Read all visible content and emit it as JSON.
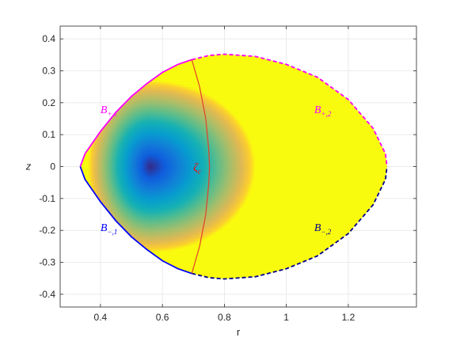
{
  "chart_data": {
    "type": "heatmap",
    "title": "",
    "xlabel": "r",
    "ylabel": "z",
    "xlim": [
      0.27,
      1.42
    ],
    "ylim": [
      -0.44,
      0.44
    ],
    "grid": true,
    "x_ticks": [
      0.4,
      0.6,
      0.8,
      1.0,
      1.2
    ],
    "x_tick_labels": [
      "0.4",
      "0.6",
      "0.8",
      "1",
      "1.2"
    ],
    "y_ticks": [
      0.4,
      0.3,
      0.2,
      0.1,
      0,
      -0.1,
      -0.2,
      -0.3,
      -0.4
    ],
    "y_tick_labels": [
      "0.4",
      "0.3",
      "0.2",
      "0.1",
      "0",
      "-0.1",
      "-0.2",
      "-0.3",
      "-0.4"
    ],
    "colormap": "parula",
    "minimum": {
      "r": 0.56,
      "z": 0.0
    },
    "boundary": {
      "upper_left": {
        "label_main": "B",
        "label_sub": "+,1",
        "color": "#ff00ff",
        "style": "solid",
        "points": [
          [
            0.335,
            0.0
          ],
          [
            0.35,
            0.04
          ],
          [
            0.4,
            0.11
          ],
          [
            0.45,
            0.17
          ],
          [
            0.5,
            0.22
          ],
          [
            0.55,
            0.26
          ],
          [
            0.6,
            0.295
          ],
          [
            0.65,
            0.32
          ],
          [
            0.695,
            0.335
          ]
        ]
      },
      "upper_right": {
        "label_main": "B",
        "label_sub": "+,2",
        "color": "#ff00ff",
        "style": "dashed",
        "points": [
          [
            0.695,
            0.335
          ],
          [
            0.75,
            0.348
          ],
          [
            0.8,
            0.352
          ],
          [
            0.9,
            0.345
          ],
          [
            1.0,
            0.32
          ],
          [
            1.1,
            0.28
          ],
          [
            1.2,
            0.21
          ],
          [
            1.28,
            0.12
          ],
          [
            1.32,
            0.04
          ],
          [
            1.325,
            0.0
          ]
        ]
      },
      "lower_left": {
        "label_main": "B",
        "label_sub": "−,1",
        "color": "#0000ff",
        "style": "solid",
        "points": [
          [
            0.335,
            0.0
          ],
          [
            0.35,
            -0.04
          ],
          [
            0.4,
            -0.11
          ],
          [
            0.45,
            -0.17
          ],
          [
            0.5,
            -0.22
          ],
          [
            0.55,
            -0.26
          ],
          [
            0.6,
            -0.295
          ],
          [
            0.65,
            -0.32
          ],
          [
            0.695,
            -0.335
          ]
        ]
      },
      "lower_right": {
        "label_main": "B",
        "label_sub": "−,2",
        "color": "#00008b",
        "style": "dashed",
        "points": [
          [
            0.695,
            -0.335
          ],
          [
            0.75,
            -0.348
          ],
          [
            0.8,
            -0.352
          ],
          [
            0.9,
            -0.345
          ],
          [
            1.0,
            -0.32
          ],
          [
            1.1,
            -0.28
          ],
          [
            1.2,
            -0.21
          ],
          [
            1.28,
            -0.12
          ],
          [
            1.32,
            -0.04
          ],
          [
            1.325,
            0.0
          ]
        ]
      }
    },
    "interface_curve": {
      "label_main": "ζ",
      "label_sub": "c",
      "color": "#e2402a",
      "points": [
        [
          0.695,
          0.335
        ],
        [
          0.72,
          0.25
        ],
        [
          0.74,
          0.15
        ],
        [
          0.75,
          0.05
        ],
        [
          0.752,
          0.0
        ],
        [
          0.75,
          -0.05
        ],
        [
          0.74,
          -0.15
        ],
        [
          0.72,
          -0.25
        ],
        [
          0.695,
          -0.335
        ]
      ]
    },
    "annotations": [
      {
        "text_main": "B",
        "text_sub": "+,1",
        "r": 0.4,
        "z": 0.18,
        "color": "#ff00ff"
      },
      {
        "text_main": "B",
        "text_sub": "+,2",
        "r": 1.09,
        "z": 0.18,
        "color": "#ff00ff"
      },
      {
        "text_main": "B",
        "text_sub": "−,1",
        "r": 0.4,
        "z": -0.19,
        "color": "#0000ff"
      },
      {
        "text_main": "B",
        "text_sub": "−,2",
        "r": 1.09,
        "z": -0.19,
        "color": "#00008b"
      },
      {
        "text_main": "ζ",
        "text_sub": "c",
        "r": 0.7,
        "z": 0.0,
        "color": "#ff0000"
      }
    ]
  }
}
